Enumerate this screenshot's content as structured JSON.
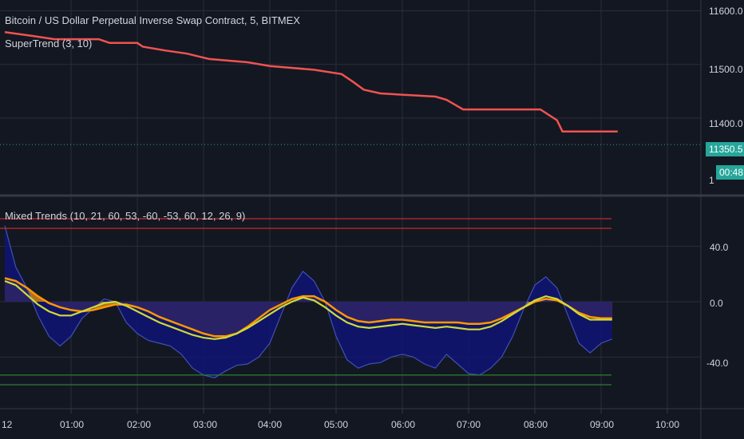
{
  "main_pane": {
    "symbol_title": "Bitcoin / US Dollar Perpetual Inverse Swap Contract, 5, BITMEX",
    "indicator_title": "SuperTrend (3, 10)",
    "price_axis": [
      "11600.0",
      "11500.0",
      "11400.0",
      "11350.5",
      "00:48",
      "1"
    ],
    "last_price": "11350.5",
    "countdown": "00:48"
  },
  "oscillator_pane": {
    "indicator_title": "Mixed Trends (10, 21, 60, 53, -60, -53, 60, 12, 26, 9)",
    "value_axis": [
      "40.0",
      "0.0",
      "-40.0"
    ]
  },
  "time_axis": [
    "12",
    "01:00",
    "02:00",
    "03:00",
    "04:00",
    "05:00",
    "06:00",
    "07:00",
    "08:00",
    "09:00",
    "10:00"
  ],
  "colors": {
    "background": "#131722",
    "grid": "#2a2e39",
    "candle_up": "#26a69a",
    "candle_down": "#ef5350",
    "supertrend": "#ef5350",
    "fill_orange": "#c47a1d",
    "fill_blue": "#101474",
    "signal_line": "#cddc39",
    "orange_line": "#ff9800",
    "level_red": "#c62828",
    "level_green": "#2e7d32"
  },
  "chart_data": [
    {
      "type": "candlestick",
      "title": "Bitcoin / US Dollar Perpetual Inverse Swap Contract, 5, BITMEX",
      "x_range": [
        "00:00",
        "10:30"
      ],
      "ylim": [
        11260,
        11620
      ],
      "y_ticks": [
        11400,
        11500,
        11600
      ],
      "last_price": 11350.5,
      "supertrend": [
        {
          "x": "00:00",
          "y": 11560
        },
        {
          "x": "00:25",
          "y": 11553
        },
        {
          "x": "00:45",
          "y": 11547
        },
        {
          "x": "01:25",
          "y": 11547
        },
        {
          "x": "01:35",
          "y": 11540
        },
        {
          "x": "02:00",
          "y": 11540
        },
        {
          "x": "02:05",
          "y": 11533
        },
        {
          "x": "02:25",
          "y": 11526
        },
        {
          "x": "02:45",
          "y": 11520
        },
        {
          "x": "03:05",
          "y": 11510
        },
        {
          "x": "03:40",
          "y": 11504
        },
        {
          "x": "04:00",
          "y": 11497
        },
        {
          "x": "04:40",
          "y": 11490
        },
        {
          "x": "05:05",
          "y": 11482
        },
        {
          "x": "05:15",
          "y": 11468
        },
        {
          "x": "05:25",
          "y": 11453
        },
        {
          "x": "05:40",
          "y": 11446
        },
        {
          "x": "05:55",
          "y": 11444
        },
        {
          "x": "06:30",
          "y": 11440
        },
        {
          "x": "06:40",
          "y": 11434
        },
        {
          "x": "06:55",
          "y": 11416
        },
        {
          "x": "08:05",
          "y": 11416
        },
        {
          "x": "08:20",
          "y": 11396
        },
        {
          "x": "08:25",
          "y": 11375
        },
        {
          "x": "09:15",
          "y": 11375
        }
      ]
    },
    {
      "type": "area",
      "title": "Mixed Trends (10, 21, 60, 53, -60, -53, 60, 12, 26, 9)",
      "x_range": [
        "00:00",
        "10:30"
      ],
      "ylim": [
        -75,
        75
      ],
      "y_ticks": [
        -40,
        0,
        40
      ],
      "levels": {
        "red": [
          60,
          53
        ],
        "green": [
          -53,
          -60
        ]
      },
      "series": [
        {
          "name": "",
          "points": [
            {
              "x": "00:00",
              "y": 17
            },
            {
              "x": "00:10",
              "y": 15
            },
            {
              "x": "00:20",
              "y": 10
            },
            {
              "x": "00:30",
              "y": 4
            },
            {
              "x": "00:40",
              "y": -1
            },
            {
              "x": "00:50",
              "y": -4
            },
            {
              "x": "01:00",
              "y": -6
            },
            {
              "x": "01:10",
              "y": -7
            },
            {
              "x": "01:20",
              "y": -6
            },
            {
              "x": "01:30",
              "y": -4
            },
            {
              "x": "01:40",
              "y": -2
            },
            {
              "x": "01:50",
              "y": -2
            },
            {
              "x": "02:00",
              "y": -4
            },
            {
              "x": "02:10",
              "y": -7
            },
            {
              "x": "02:20",
              "y": -11
            },
            {
              "x": "02:30",
              "y": -14
            },
            {
              "x": "02:40",
              "y": -17
            },
            {
              "x": "02:50",
              "y": -20
            },
            {
              "x": "03:00",
              "y": -23
            },
            {
              "x": "03:10",
              "y": -25
            },
            {
              "x": "03:20",
              "y": -25
            },
            {
              "x": "03:30",
              "y": -23
            },
            {
              "x": "03:40",
              "y": -18
            },
            {
              "x": "03:50",
              "y": -12
            },
            {
              "x": "04:00",
              "y": -6
            },
            {
              "x": "04:10",
              "y": -2
            },
            {
              "x": "04:20",
              "y": 2
            },
            {
              "x": "04:30",
              "y": 4
            },
            {
              "x": "04:40",
              "y": 4
            },
            {
              "x": "04:50",
              "y": 0
            },
            {
              "x": "05:00",
              "y": -6
            },
            {
              "x": "05:10",
              "y": -11
            },
            {
              "x": "05:20",
              "y": -14
            },
            {
              "x": "05:30",
              "y": -15
            },
            {
              "x": "05:40",
              "y": -14
            },
            {
              "x": "05:50",
              "y": -13
            },
            {
              "x": "06:00",
              "y": -13
            },
            {
              "x": "06:10",
              "y": -14
            },
            {
              "x": "06:20",
              "y": -15
            },
            {
              "x": "06:30",
              "y": -15
            },
            {
              "x": "06:40",
              "y": -15
            },
            {
              "x": "06:50",
              "y": -15
            },
            {
              "x": "07:00",
              "y": -16
            },
            {
              "x": "07:10",
              "y": -16
            },
            {
              "x": "07:20",
              "y": -15
            },
            {
              "x": "07:30",
              "y": -12
            },
            {
              "x": "07:40",
              "y": -8
            },
            {
              "x": "07:50",
              "y": -4
            },
            {
              "x": "08:00",
              "y": 0
            },
            {
              "x": "08:10",
              "y": 2
            },
            {
              "x": "08:20",
              "y": 1
            },
            {
              "x": "08:30",
              "y": -3
            },
            {
              "x": "08:40",
              "y": -8
            },
            {
              "x": "08:50",
              "y": -11
            },
            {
              "x": "09:00",
              "y": -12
            },
            {
              "x": "09:10",
              "y": -12
            }
          ]
        },
        {
          "name": "",
          "points": [
            {
              "x": "00:00",
              "y": 55
            },
            {
              "x": "00:10",
              "y": 25
            },
            {
              "x": "00:20",
              "y": 10
            },
            {
              "x": "00:30",
              "y": -10
            },
            {
              "x": "00:40",
              "y": -25
            },
            {
              "x": "00:50",
              "y": -32
            },
            {
              "x": "01:00",
              "y": -25
            },
            {
              "x": "01:10",
              "y": -12
            },
            {
              "x": "01:20",
              "y": -5
            },
            {
              "x": "01:30",
              "y": 2
            },
            {
              "x": "01:40",
              "y": 0
            },
            {
              "x": "01:50",
              "y": -15
            },
            {
              "x": "02:00",
              "y": -23
            },
            {
              "x": "02:10",
              "y": -28
            },
            {
              "x": "02:20",
              "y": -30
            },
            {
              "x": "02:30",
              "y": -32
            },
            {
              "x": "02:40",
              "y": -38
            },
            {
              "x": "02:50",
              "y": -48
            },
            {
              "x": "03:00",
              "y": -53
            },
            {
              "x": "03:10",
              "y": -55
            },
            {
              "x": "03:20",
              "y": -50
            },
            {
              "x": "03:30",
              "y": -46
            },
            {
              "x": "03:40",
              "y": -45
            },
            {
              "x": "03:50",
              "y": -40
            },
            {
              "x": "04:00",
              "y": -30
            },
            {
              "x": "04:10",
              "y": -10
            },
            {
              "x": "04:20",
              "y": 10
            },
            {
              "x": "04:30",
              "y": 22
            },
            {
              "x": "04:40",
              "y": 15
            },
            {
              "x": "04:50",
              "y": 0
            },
            {
              "x": "05:00",
              "y": -25
            },
            {
              "x": "05:10",
              "y": -42
            },
            {
              "x": "05:20",
              "y": -48
            },
            {
              "x": "05:30",
              "y": -45
            },
            {
              "x": "05:40",
              "y": -44
            },
            {
              "x": "05:50",
              "y": -40
            },
            {
              "x": "06:00",
              "y": -38
            },
            {
              "x": "06:10",
              "y": -40
            },
            {
              "x": "06:20",
              "y": -45
            },
            {
              "x": "06:30",
              "y": -48
            },
            {
              "x": "06:40",
              "y": -38
            },
            {
              "x": "06:50",
              "y": -45
            },
            {
              "x": "07:00",
              "y": -52
            },
            {
              "x": "07:10",
              "y": -53
            },
            {
              "x": "07:20",
              "y": -48
            },
            {
              "x": "07:30",
              "y": -40
            },
            {
              "x": "07:40",
              "y": -25
            },
            {
              "x": "07:50",
              "y": -5
            },
            {
              "x": "08:00",
              "y": 12
            },
            {
              "x": "08:10",
              "y": 18
            },
            {
              "x": "08:20",
              "y": 10
            },
            {
              "x": "08:30",
              "y": -10
            },
            {
              "x": "08:40",
              "y": -30
            },
            {
              "x": "08:50",
              "y": -37
            },
            {
              "x": "09:00",
              "y": -30
            },
            {
              "x": "09:10",
              "y": -27
            }
          ]
        },
        {
          "name": "",
          "points": [
            {
              "x": "00:00",
              "y": 15
            },
            {
              "x": "00:10",
              "y": 12
            },
            {
              "x": "00:20",
              "y": 5
            },
            {
              "x": "00:30",
              "y": -2
            },
            {
              "x": "00:40",
              "y": -7
            },
            {
              "x": "00:50",
              "y": -10
            },
            {
              "x": "01:00",
              "y": -10
            },
            {
              "x": "01:10",
              "y": -7
            },
            {
              "x": "01:20",
              "y": -4
            },
            {
              "x": "01:30",
              "y": -1
            },
            {
              "x": "01:40",
              "y": 0
            },
            {
              "x": "01:50",
              "y": -3
            },
            {
              "x": "02:00",
              "y": -7
            },
            {
              "x": "02:10",
              "y": -11
            },
            {
              "x": "02:20",
              "y": -15
            },
            {
              "x": "02:30",
              "y": -18
            },
            {
              "x": "02:40",
              "y": -21
            },
            {
              "x": "02:50",
              "y": -24
            },
            {
              "x": "03:00",
              "y": -26
            },
            {
              "x": "03:10",
              "y": -27
            },
            {
              "x": "03:20",
              "y": -26
            },
            {
              "x": "03:30",
              "y": -23
            },
            {
              "x": "03:40",
              "y": -19
            },
            {
              "x": "03:50",
              "y": -14
            },
            {
              "x": "04:00",
              "y": -9
            },
            {
              "x": "04:10",
              "y": -4
            },
            {
              "x": "04:20",
              "y": 0
            },
            {
              "x": "04:30",
              "y": 3
            },
            {
              "x": "04:40",
              "y": 1
            },
            {
              "x": "04:50",
              "y": -4
            },
            {
              "x": "05:00",
              "y": -10
            },
            {
              "x": "05:10",
              "y": -15
            },
            {
              "x": "05:20",
              "y": -18
            },
            {
              "x": "05:30",
              "y": -19
            },
            {
              "x": "05:40",
              "y": -18
            },
            {
              "x": "05:50",
              "y": -17
            },
            {
              "x": "06:00",
              "y": -16
            },
            {
              "x": "06:10",
              "y": -17
            },
            {
              "x": "06:20",
              "y": -18
            },
            {
              "x": "06:30",
              "y": -19
            },
            {
              "x": "06:40",
              "y": -18
            },
            {
              "x": "06:50",
              "y": -19
            },
            {
              "x": "07:00",
              "y": -20
            },
            {
              "x": "07:10",
              "y": -20
            },
            {
              "x": "07:20",
              "y": -18
            },
            {
              "x": "07:30",
              "y": -14
            },
            {
              "x": "07:40",
              "y": -9
            },
            {
              "x": "07:50",
              "y": -4
            },
            {
              "x": "08:00",
              "y": 1
            },
            {
              "x": "08:10",
              "y": 4
            },
            {
              "x": "08:20",
              "y": 2
            },
            {
              "x": "08:30",
              "y": -3
            },
            {
              "x": "08:40",
              "y": -9
            },
            {
              "x": "08:50",
              "y": -13
            },
            {
              "x": "09:00",
              "y": -13
            },
            {
              "x": "09:10",
              "y": -13
            }
          ]
        }
      ]
    }
  ]
}
